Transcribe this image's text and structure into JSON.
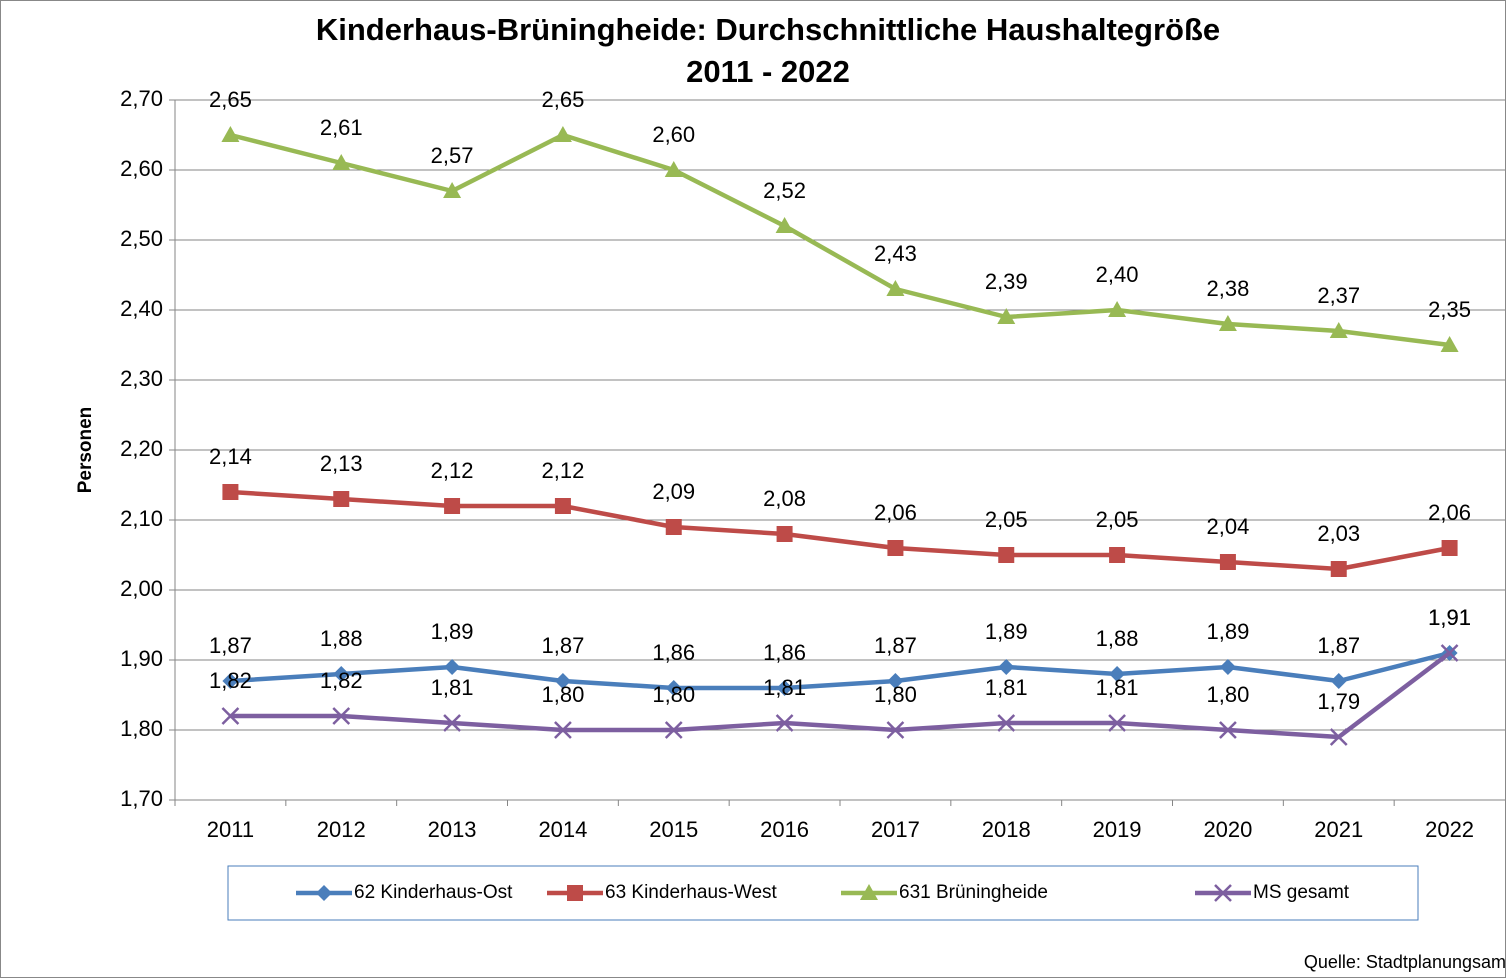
{
  "chart_data": {
    "type": "line",
    "title": "Kinderhaus-Brüningheide: Durchschnittliche Haushaltegröße",
    "subtitle": "2011 - 2022",
    "y_label": "Personen",
    "annotation": "Quelle: Stadtplanungsam",
    "categories": [
      "2011",
      "2012",
      "2013",
      "2014",
      "2015",
      "2016",
      "2017",
      "2018",
      "2019",
      "2020",
      "2021",
      "2022"
    ],
    "ylim": [
      1.7,
      2.7
    ],
    "yticks": [
      {
        "value": 1.7,
        "label": "1,70"
      },
      {
        "value": 1.8,
        "label": "1,80"
      },
      {
        "value": 1.9,
        "label": "1,90"
      },
      {
        "value": 2.0,
        "label": "2,00"
      },
      {
        "value": 2.1,
        "label": "2,10"
      },
      {
        "value": 2.2,
        "label": "2,20"
      },
      {
        "value": 2.3,
        "label": "2,30"
      },
      {
        "value": 2.4,
        "label": "2,40"
      },
      {
        "value": 2.5,
        "label": "2,50"
      },
      {
        "value": 2.6,
        "label": "2,60"
      },
      {
        "value": 2.7,
        "label": "2,70"
      }
    ],
    "grid": true,
    "legend": "bottom",
    "series": [
      {
        "name": "62 Kinderhaus-Ost",
        "color": "#4a7ebb",
        "marker": "diamond",
        "values": [
          1.87,
          1.88,
          1.89,
          1.87,
          1.86,
          1.86,
          1.87,
          1.89,
          1.88,
          1.89,
          1.87,
          1.91
        ],
        "value_labels": [
          "1,87",
          "1,88",
          "1,89",
          "1,87",
          "1,86",
          "1,86",
          "1,87",
          "1,89",
          "1,88",
          "1,89",
          "1,87",
          "1,91"
        ]
      },
      {
        "name": "63 Kinderhaus-West",
        "color": "#be4b48",
        "marker": "square",
        "values": [
          2.14,
          2.13,
          2.12,
          2.12,
          2.09,
          2.08,
          2.06,
          2.05,
          2.05,
          2.04,
          2.03,
          2.06
        ],
        "value_labels": [
          "2,14",
          "2,13",
          "2,12",
          "2,12",
          "2,09",
          "2,08",
          "2,06",
          "2,05",
          "2,05",
          "2,04",
          "2,03",
          "2,06"
        ]
      },
      {
        "name": "631 Brüningheide",
        "color": "#98b954",
        "marker": "triangle",
        "values": [
          2.65,
          2.61,
          2.57,
          2.65,
          2.6,
          2.52,
          2.43,
          2.39,
          2.4,
          2.38,
          2.37,
          2.35
        ],
        "value_labels": [
          "2,65",
          "2,61",
          "2,57",
          "2,65",
          "2,60",
          "2,52",
          "2,43",
          "2,39",
          "2,40",
          "2,38",
          "2,37",
          "2,35"
        ]
      },
      {
        "name": "MS gesamt",
        "color": "#7d5fa0",
        "marker": "x",
        "values": [
          1.82,
          1.82,
          1.81,
          1.8,
          1.8,
          1.81,
          1.8,
          1.81,
          1.81,
          1.8,
          1.79,
          1.91
        ],
        "value_labels": [
          "1,82",
          "1,82",
          "1,81",
          "1,80",
          "1,80",
          "1,81",
          "1,80",
          "1,81",
          "1,81",
          "1,80",
          "1,79",
          "1,91"
        ]
      }
    ]
  }
}
